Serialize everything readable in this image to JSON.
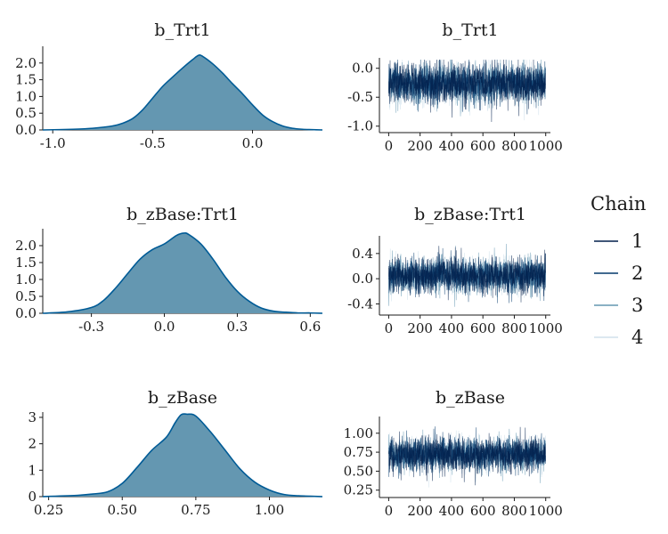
{
  "chart_data": [
    {
      "type": "area",
      "kind": "density",
      "title": "b_Trt1",
      "x_range": [
        -1.05,
        0.35
      ],
      "x_ticks": [
        -1.0,
        -0.5,
        0.0
      ],
      "x_tick_labels": [
        "-1.0",
        "-0.5",
        "0.0"
      ],
      "y_range": [
        0,
        2.5
      ],
      "y_ticks": [
        0.0,
        0.5,
        1.0,
        1.5,
        2.0
      ],
      "y_tick_labels": [
        "0.0",
        "0.5",
        "1.0",
        "1.5",
        "2.0"
      ],
      "x": [
        -1.05,
        -0.9,
        -0.8,
        -0.7,
        -0.65,
        -0.6,
        -0.55,
        -0.5,
        -0.45,
        -0.4,
        -0.35,
        -0.3,
        -0.27,
        -0.25,
        -0.2,
        -0.15,
        -0.1,
        -0.05,
        0.0,
        0.05,
        0.1,
        0.15,
        0.2,
        0.25,
        0.3,
        0.35
      ],
      "y": [
        0.0,
        0.02,
        0.05,
        0.12,
        0.2,
        0.34,
        0.6,
        0.95,
        1.3,
        1.58,
        1.85,
        2.1,
        2.23,
        2.2,
        1.98,
        1.7,
        1.38,
        1.08,
        0.75,
        0.45,
        0.25,
        0.12,
        0.05,
        0.02,
        0.01,
        0.0
      ]
    },
    {
      "type": "line",
      "kind": "trace",
      "title": "b_Trt1",
      "x_range": [
        -25,
        1030
      ],
      "x_ticks": [
        0,
        200,
        400,
        600,
        800,
        1000
      ],
      "x_tick_labels": [
        "0",
        "200",
        "400",
        "600",
        "800",
        "1000"
      ],
      "y_range": [
        -1.05,
        0.18
      ],
      "y_ticks": [
        -1.0,
        -0.5,
        0.0
      ],
      "y_tick_labels": [
        "-1.0",
        "-0.5",
        "0.0"
      ],
      "center": -0.27,
      "spread": 0.2,
      "min_clip": -1.0,
      "max_clip": 0.15,
      "seed": 11
    },
    {
      "type": "area",
      "kind": "density",
      "title": "b_zBase:Trt1",
      "x_range": [
        -0.5,
        0.65
      ],
      "x_ticks": [
        -0.3,
        0.0,
        0.3,
        0.6
      ],
      "x_tick_labels": [
        "-0.3",
        "0.0",
        "0.3",
        "0.6"
      ],
      "y_range": [
        0,
        2.5
      ],
      "y_ticks": [
        0.0,
        0.5,
        1.0,
        1.5,
        2.0
      ],
      "y_tick_labels": [
        "0.0",
        "0.5",
        "1.0",
        "1.5",
        "2.0"
      ],
      "x": [
        -0.5,
        -0.4,
        -0.3,
        -0.25,
        -0.2,
        -0.15,
        -0.1,
        -0.05,
        0.0,
        0.05,
        0.08,
        0.1,
        0.15,
        0.2,
        0.25,
        0.3,
        0.35,
        0.4,
        0.45,
        0.5,
        0.55,
        0.6,
        0.65
      ],
      "y": [
        0.0,
        0.04,
        0.17,
        0.38,
        0.75,
        1.18,
        1.6,
        1.88,
        2.05,
        2.3,
        2.37,
        2.33,
        2.05,
        1.6,
        1.08,
        0.65,
        0.35,
        0.15,
        0.06,
        0.03,
        0.01,
        0.01,
        0.0
      ]
    },
    {
      "type": "line",
      "kind": "trace",
      "title": "b_zBase:Trt1",
      "x_range": [
        -25,
        1030
      ],
      "x_ticks": [
        0,
        200,
        400,
        600,
        800,
        1000
      ],
      "x_tick_labels": [
        "0",
        "200",
        "400",
        "600",
        "800",
        "1000"
      ],
      "y_range": [
        -0.52,
        0.68
      ],
      "y_ticks": [
        -0.4,
        0.0,
        0.4
      ],
      "y_tick_labels": [
        "-0.4",
        "0.0",
        "0.4"
      ],
      "center": 0.05,
      "spread": 0.16,
      "min_clip": -0.5,
      "max_clip": 0.65,
      "seed": 23
    },
    {
      "type": "area",
      "kind": "density",
      "title": "b_zBase",
      "x_range": [
        0.23,
        1.18
      ],
      "x_ticks": [
        0.25,
        0.5,
        0.75,
        1.0
      ],
      "x_tick_labels": [
        "0.25",
        "0.50",
        "0.75",
        "1.00"
      ],
      "y_range": [
        0,
        3.2
      ],
      "y_ticks": [
        0,
        1,
        2,
        3
      ],
      "y_tick_labels": [
        "0",
        "1",
        "2",
        "3"
      ],
      "x": [
        0.23,
        0.35,
        0.4,
        0.45,
        0.5,
        0.55,
        0.6,
        0.65,
        0.68,
        0.7,
        0.72,
        0.75,
        0.8,
        0.85,
        0.9,
        0.95,
        1.0,
        1.05,
        1.1,
        1.18
      ],
      "y": [
        0.0,
        0.05,
        0.1,
        0.18,
        0.5,
        1.1,
        1.75,
        2.25,
        2.8,
        3.1,
        3.12,
        3.05,
        2.45,
        1.75,
        1.05,
        0.55,
        0.25,
        0.08,
        0.03,
        0.0
      ]
    },
    {
      "type": "line",
      "kind": "trace",
      "title": "b_zBase",
      "x_range": [
        -25,
        1030
      ],
      "x_ticks": [
        0,
        200,
        400,
        600,
        800,
        1000
      ],
      "x_tick_labels": [
        "0",
        "200",
        "400",
        "600",
        "800",
        "1000"
      ],
      "y_range": [
        0.2,
        1.22
      ],
      "y_ticks": [
        0.25,
        0.5,
        0.75,
        1.0
      ],
      "y_tick_labels": [
        "0.25",
        "0.50",
        "0.75",
        "1.00"
      ],
      "center": 0.72,
      "spread": 0.13,
      "min_clip": 0.22,
      "max_clip": 1.2,
      "seed": 37
    }
  ],
  "legend": {
    "title": "Chain",
    "entries": [
      "1",
      "2",
      "3",
      "4"
    ],
    "placement": "right"
  },
  "colors": {
    "density_fill": "#6497b1",
    "density_line": "#005b96",
    "axis": "#1a1a1a",
    "chains": [
      "#011f4b",
      "#03396c",
      "#6497b1",
      "#d1e1ec"
    ]
  }
}
